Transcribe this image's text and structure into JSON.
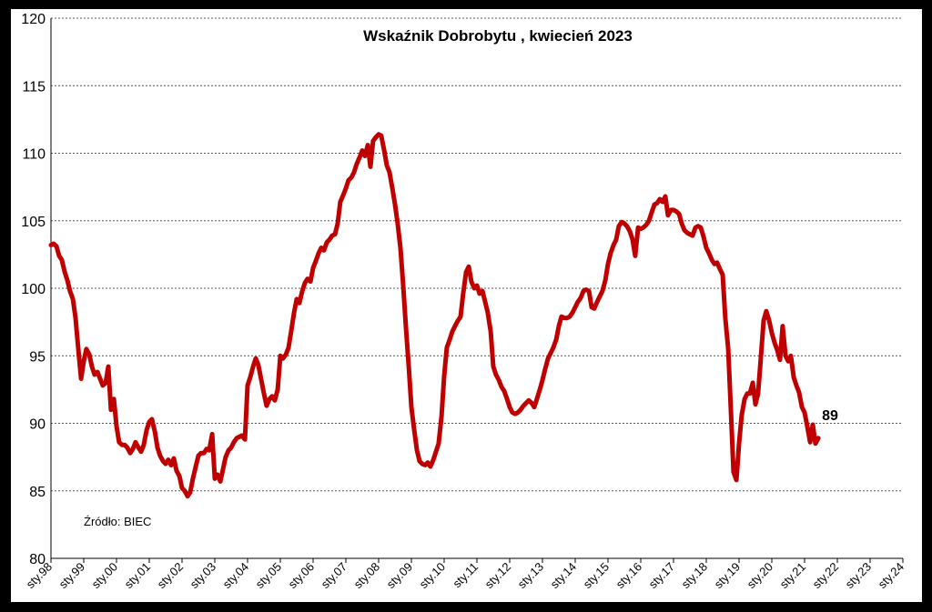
{
  "chart_data": {
    "type": "line",
    "title": "Wskaźnik Dobrobytu , kwiecień 2023",
    "source_note": "Źródło: BIEC",
    "end_label": "89",
    "xlabel": "",
    "ylabel": "",
    "ylim": [
      80,
      120
    ],
    "yticks": [
      80,
      85,
      90,
      95,
      100,
      105,
      110,
      115,
      120
    ],
    "xlim": [
      0,
      26
    ],
    "xtick_labels": [
      "sty.98",
      "sty.99",
      "sty.00",
      "sty.01",
      "sty.02",
      "sty.03",
      "sty.04",
      "sty.05",
      "sty.06",
      "sty.07",
      "sty.08",
      "sty.09",
      "sty.10",
      "sty.11",
      "sty.12",
      "sty.13",
      "sty.14",
      "sty.15",
      "sty.16",
      "sty.17",
      "sty.18",
      "sty.19",
      "sty.20",
      "sty.21",
      "sty.22",
      "sty.23",
      "sty.24"
    ],
    "grid": "horizontal dotted",
    "legend": "none",
    "line_color": "#c00000",
    "series": [
      {
        "points": [
          [
            0.0,
            103.2
          ],
          [
            0.08,
            103.3
          ],
          [
            0.17,
            103.1
          ],
          [
            0.25,
            102.4
          ],
          [
            0.33,
            102.1
          ],
          [
            0.42,
            101.2
          ],
          [
            0.5,
            100.6
          ],
          [
            0.58,
            99.8
          ],
          [
            0.67,
            99.2
          ],
          [
            0.75,
            97.8
          ],
          [
            0.83,
            95.6
          ],
          [
            0.92,
            93.3
          ],
          [
            1.0,
            94.6
          ],
          [
            1.08,
            95.5
          ],
          [
            1.17,
            95.1
          ],
          [
            1.25,
            94.2
          ],
          [
            1.33,
            93.6
          ],
          [
            1.42,
            93.8
          ],
          [
            1.5,
            93.3
          ],
          [
            1.58,
            92.8
          ],
          [
            1.67,
            93.0
          ],
          [
            1.75,
            94.2
          ],
          [
            1.83,
            91.0
          ],
          [
            1.92,
            91.8
          ],
          [
            2.0,
            89.8
          ],
          [
            2.08,
            88.6
          ],
          [
            2.17,
            88.4
          ],
          [
            2.25,
            88.4
          ],
          [
            2.33,
            88.2
          ],
          [
            2.42,
            87.8
          ],
          [
            2.5,
            88.1
          ],
          [
            2.58,
            88.6
          ],
          [
            2.67,
            88.2
          ],
          [
            2.75,
            87.9
          ],
          [
            2.83,
            88.4
          ],
          [
            2.92,
            89.5
          ],
          [
            3.0,
            90.1
          ],
          [
            3.08,
            90.3
          ],
          [
            3.17,
            89.4
          ],
          [
            3.25,
            88.2
          ],
          [
            3.33,
            87.6
          ],
          [
            3.42,
            87.2
          ],
          [
            3.5,
            87.0
          ],
          [
            3.58,
            87.3
          ],
          [
            3.67,
            86.9
          ],
          [
            3.75,
            87.4
          ],
          [
            3.83,
            86.5
          ],
          [
            3.92,
            86.1
          ],
          [
            4.0,
            85.2
          ],
          [
            4.08,
            85.0
          ],
          [
            4.17,
            84.6
          ],
          [
            4.25,
            84.9
          ],
          [
            4.33,
            85.9
          ],
          [
            4.42,
            86.8
          ],
          [
            4.5,
            87.6
          ],
          [
            4.58,
            87.8
          ],
          [
            4.67,
            87.8
          ],
          [
            4.75,
            88.1
          ],
          [
            4.83,
            88.0
          ],
          [
            4.92,
            89.2
          ],
          [
            5.0,
            85.9
          ],
          [
            5.08,
            86.2
          ],
          [
            5.17,
            85.7
          ],
          [
            5.25,
            86.6
          ],
          [
            5.33,
            87.5
          ],
          [
            5.42,
            88.0
          ],
          [
            5.5,
            88.2
          ],
          [
            5.58,
            88.6
          ],
          [
            5.67,
            88.9
          ],
          [
            5.75,
            89.0
          ],
          [
            5.83,
            89.1
          ],
          [
            5.92,
            88.8
          ],
          [
            6.0,
            92.8
          ],
          [
            6.08,
            93.4
          ],
          [
            6.17,
            94.2
          ],
          [
            6.25,
            94.8
          ],
          [
            6.33,
            94.3
          ],
          [
            6.42,
            93.2
          ],
          [
            6.5,
            92.2
          ],
          [
            6.58,
            91.3
          ],
          [
            6.67,
            91.8
          ],
          [
            6.75,
            92.0
          ],
          [
            6.83,
            91.7
          ],
          [
            6.92,
            92.5
          ],
          [
            7.0,
            95.0
          ],
          [
            7.08,
            94.8
          ],
          [
            7.17,
            95.1
          ],
          [
            7.25,
            95.6
          ],
          [
            7.33,
            96.8
          ],
          [
            7.42,
            98.2
          ],
          [
            7.5,
            99.2
          ],
          [
            7.58,
            98.9
          ],
          [
            7.67,
            99.8
          ],
          [
            7.75,
            100.4
          ],
          [
            7.83,
            100.7
          ],
          [
            7.92,
            100.5
          ],
          [
            8.0,
            101.5
          ],
          [
            8.08,
            102.0
          ],
          [
            8.17,
            102.6
          ],
          [
            8.25,
            103.0
          ],
          [
            8.33,
            102.8
          ],
          [
            8.42,
            103.4
          ],
          [
            8.5,
            103.6
          ],
          [
            8.58,
            103.9
          ],
          [
            8.67,
            104.0
          ],
          [
            8.75,
            104.8
          ],
          [
            8.83,
            106.4
          ],
          [
            8.92,
            106.9
          ],
          [
            9.0,
            107.4
          ],
          [
            9.08,
            108.0
          ],
          [
            9.17,
            108.2
          ],
          [
            9.25,
            108.6
          ],
          [
            9.33,
            109.2
          ],
          [
            9.42,
            109.7
          ],
          [
            9.5,
            110.2
          ],
          [
            9.58,
            109.8
          ],
          [
            9.67,
            110.6
          ],
          [
            9.75,
            109.0
          ],
          [
            9.83,
            110.9
          ],
          [
            9.92,
            111.2
          ],
          [
            10.0,
            111.4
          ],
          [
            10.08,
            111.3
          ],
          [
            10.17,
            110.2
          ],
          [
            10.25,
            109.1
          ],
          [
            10.33,
            108.6
          ],
          [
            10.42,
            107.4
          ],
          [
            10.5,
            106.2
          ],
          [
            10.58,
            104.8
          ],
          [
            10.67,
            102.9
          ],
          [
            10.75,
            100.2
          ],
          [
            10.83,
            97.2
          ],
          [
            10.92,
            94.2
          ],
          [
            11.0,
            91.2
          ],
          [
            11.08,
            89.6
          ],
          [
            11.17,
            88.0
          ],
          [
            11.25,
            87.2
          ],
          [
            11.33,
            87.0
          ],
          [
            11.42,
            86.9
          ],
          [
            11.5,
            87.1
          ],
          [
            11.58,
            86.8
          ],
          [
            11.67,
            87.3
          ],
          [
            11.75,
            87.9
          ],
          [
            11.83,
            88.5
          ],
          [
            11.92,
            90.5
          ],
          [
            12.0,
            93.5
          ],
          [
            12.08,
            95.6
          ],
          [
            12.17,
            96.2
          ],
          [
            12.25,
            96.8
          ],
          [
            12.33,
            97.2
          ],
          [
            12.42,
            97.6
          ],
          [
            12.5,
            97.9
          ],
          [
            12.58,
            99.6
          ],
          [
            12.67,
            101.2
          ],
          [
            12.75,
            101.6
          ],
          [
            12.83,
            100.5
          ],
          [
            12.92,
            100.0
          ],
          [
            13.0,
            100.2
          ],
          [
            13.08,
            99.6
          ],
          [
            13.17,
            99.8
          ],
          [
            13.25,
            99.0
          ],
          [
            13.33,
            98.2
          ],
          [
            13.42,
            96.8
          ],
          [
            13.5,
            94.2
          ],
          [
            13.58,
            93.6
          ],
          [
            13.67,
            93.2
          ],
          [
            13.75,
            92.7
          ],
          [
            13.83,
            92.4
          ],
          [
            13.92,
            91.8
          ],
          [
            14.0,
            91.2
          ],
          [
            14.08,
            90.8
          ],
          [
            14.17,
            90.7
          ],
          [
            14.25,
            90.8
          ],
          [
            14.33,
            91.0
          ],
          [
            14.42,
            91.3
          ],
          [
            14.5,
            91.5
          ],
          [
            14.58,
            91.7
          ],
          [
            14.67,
            91.5
          ],
          [
            14.75,
            91.2
          ],
          [
            14.83,
            91.8
          ],
          [
            14.92,
            92.5
          ],
          [
            15.0,
            93.2
          ],
          [
            15.08,
            94.0
          ],
          [
            15.17,
            94.8
          ],
          [
            15.25,
            95.2
          ],
          [
            15.33,
            95.6
          ],
          [
            15.42,
            96.2
          ],
          [
            15.5,
            97.2
          ],
          [
            15.58,
            97.9
          ],
          [
            15.67,
            97.8
          ],
          [
            15.75,
            97.8
          ],
          [
            15.83,
            97.9
          ],
          [
            15.92,
            98.2
          ],
          [
            16.0,
            98.6
          ],
          [
            16.08,
            99.0
          ],
          [
            16.17,
            99.3
          ],
          [
            16.25,
            99.8
          ],
          [
            16.33,
            99.9
          ],
          [
            16.42,
            99.8
          ],
          [
            16.5,
            98.6
          ],
          [
            16.58,
            98.5
          ],
          [
            16.67,
            99.0
          ],
          [
            16.75,
            99.4
          ],
          [
            16.83,
            99.8
          ],
          [
            16.92,
            100.6
          ],
          [
            17.0,
            101.8
          ],
          [
            17.08,
            102.6
          ],
          [
            17.17,
            103.2
          ],
          [
            17.25,
            103.6
          ],
          [
            17.33,
            104.6
          ],
          [
            17.42,
            104.9
          ],
          [
            17.5,
            104.8
          ],
          [
            17.58,
            104.6
          ],
          [
            17.67,
            104.2
          ],
          [
            17.75,
            103.6
          ],
          [
            17.83,
            102.4
          ],
          [
            17.92,
            104.5
          ],
          [
            18.0,
            104.4
          ],
          [
            18.08,
            104.5
          ],
          [
            18.17,
            104.7
          ],
          [
            18.25,
            105.0
          ],
          [
            18.33,
            105.6
          ],
          [
            18.42,
            106.2
          ],
          [
            18.5,
            106.3
          ],
          [
            18.58,
            106.6
          ],
          [
            18.67,
            106.4
          ],
          [
            18.75,
            106.8
          ],
          [
            18.83,
            105.4
          ],
          [
            18.92,
            105.8
          ],
          [
            19.0,
            105.8
          ],
          [
            19.08,
            105.7
          ],
          [
            19.17,
            105.5
          ],
          [
            19.25,
            104.8
          ],
          [
            19.33,
            104.3
          ],
          [
            19.42,
            104.1
          ],
          [
            19.5,
            104.0
          ],
          [
            19.58,
            103.9
          ],
          [
            19.67,
            104.5
          ],
          [
            19.75,
            104.6
          ],
          [
            19.83,
            104.5
          ],
          [
            19.92,
            103.8
          ],
          [
            20.0,
            103.0
          ],
          [
            20.08,
            102.6
          ],
          [
            20.17,
            102.1
          ],
          [
            20.25,
            101.8
          ],
          [
            20.33,
            101.9
          ],
          [
            20.42,
            101.4
          ],
          [
            20.5,
            101.0
          ],
          [
            20.58,
            97.8
          ],
          [
            20.67,
            95.5
          ],
          [
            20.75,
            91.0
          ],
          [
            20.83,
            86.4
          ],
          [
            20.92,
            85.8
          ],
          [
            21.0,
            88.5
          ],
          [
            21.08,
            90.6
          ],
          [
            21.17,
            91.8
          ],
          [
            21.25,
            92.2
          ],
          [
            21.33,
            92.2
          ],
          [
            21.42,
            93.0
          ],
          [
            21.5,
            91.4
          ],
          [
            21.58,
            92.2
          ],
          [
            21.67,
            95.0
          ],
          [
            21.75,
            97.6
          ],
          [
            21.83,
            98.3
          ],
          [
            21.92,
            97.6
          ],
          [
            22.0,
            96.7
          ],
          [
            22.08,
            96.0
          ],
          [
            22.17,
            95.4
          ],
          [
            22.25,
            94.7
          ],
          [
            22.33,
            97.2
          ],
          [
            22.42,
            95.0
          ],
          [
            22.5,
            94.6
          ],
          [
            22.58,
            95.0
          ],
          [
            22.67,
            93.4
          ],
          [
            22.75,
            92.8
          ],
          [
            22.83,
            92.3
          ],
          [
            22.92,
            91.2
          ],
          [
            23.0,
            90.8
          ],
          [
            23.08,
            89.8
          ],
          [
            23.17,
            88.6
          ],
          [
            23.25,
            89.9
          ],
          [
            23.33,
            88.5
          ],
          [
            23.42,
            88.9
          ]
        ]
      }
    ]
  }
}
